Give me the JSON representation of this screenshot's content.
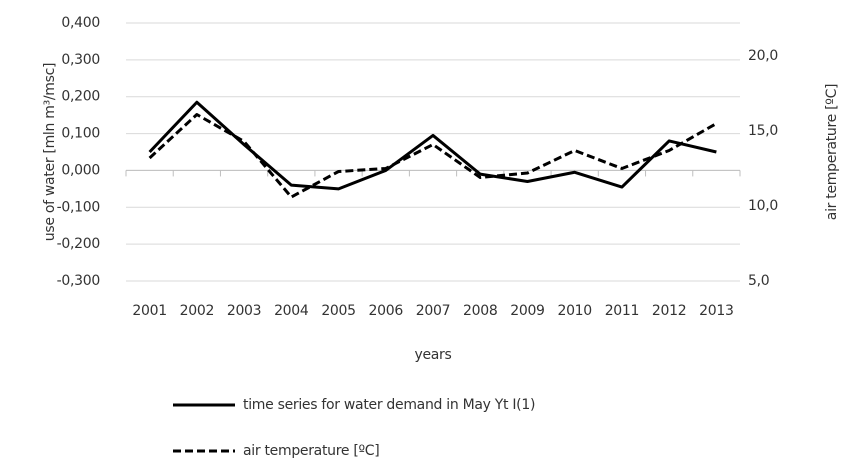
{
  "chart_data": {
    "type": "line",
    "x_label": "years",
    "y_label": "use of water  [mln m³/msc]",
    "y2_label": "air temperature  [ºC]",
    "categories": [
      "2001",
      "2002",
      "2003",
      "2004",
      "2005",
      "2006",
      "2007",
      "2008",
      "2009",
      "2010",
      "2011",
      "2012",
      "2013"
    ],
    "series": [
      {
        "name": "time series for water demand in May Yt I(1)",
        "color": "#000000",
        "dash": "solid",
        "values": [
          0.05,
          0.185,
          0.07,
          -0.04,
          -0.05,
          0.0,
          0.095,
          -0.01,
          -0.03,
          -0.005,
          -0.045,
          0.08,
          0.05
        ]
      },
      {
        "name": "air temperature [ºC]",
        "color": "#000000",
        "dash": "dashed",
        "axis": "y2",
        "values": [
          13.2,
          16.1,
          14.3,
          10.6,
          12.3,
          12.5,
          14.1,
          11.9,
          12.2,
          13.7,
          12.5,
          13.7,
          15.5
        ]
      }
    ],
    "ylim": [
      -0.3,
      0.4
    ],
    "yticks": [
      {
        "value": -0.3,
        "label": "-0,300"
      },
      {
        "value": -0.2,
        "label": "-0,200"
      },
      {
        "value": -0.1,
        "label": "-0,100"
      },
      {
        "value": 0,
        "label": "0,000"
      },
      {
        "value": 0.1,
        "label": "0,100"
      },
      {
        "value": 0.2,
        "label": "0,200"
      },
      {
        "value": 0.3,
        "label": "0,300"
      },
      {
        "value": 0.4,
        "label": "0,400"
      }
    ],
    "y2lim": [
      5,
      22.2
    ],
    "y2ticks": [
      {
        "value": 5,
        "label": "5,0"
      },
      {
        "value": 10,
        "label": "10,0"
      },
      {
        "value": 15,
        "label": "15,0"
      },
      {
        "value": 20,
        "label": "20,0"
      }
    ],
    "grid": true
  }
}
